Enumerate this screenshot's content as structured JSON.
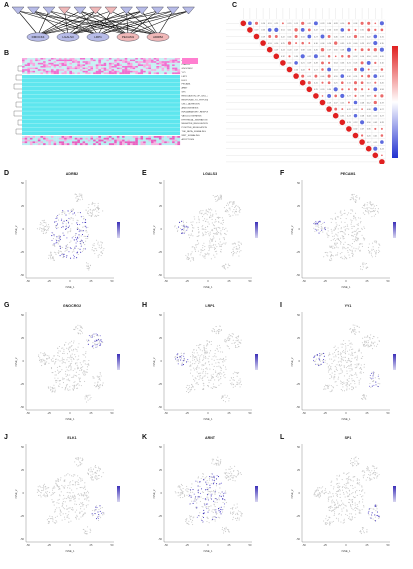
{
  "panels": {
    "A": {
      "letter": "A",
      "top_nodes": 12,
      "bottom_labels": [
        "DMOCK4",
        "LGALS3",
        "LRP1",
        "PECAM1",
        "ADRB2"
      ],
      "bottom_colors": [
        "#b8bce8",
        "#b8bce8",
        "#b8bce8",
        "#f0b8b8",
        "#f0b8b8"
      ]
    },
    "B": {
      "letter": "B",
      "row_labels": [
        "ADRB2",
        "LGALS3",
        "GNOCRG2",
        "YY1",
        "LRP1",
        "ELK1",
        "PECAM1",
        "ARNT",
        "SP1",
        "REGULATION_OF_CELL_MIGRATION",
        "RESPONSE_TO_HYPOXIA",
        "CELL_ADHESION",
        "ANGIOGENESIS",
        "INFLAMMATORY_RESPONSE",
        "VASCULOGENESIS",
        "EPITHELIAL_MIGRATION",
        "NEGATIVE_REGULATION",
        "POSITIVE_REGULATION",
        "TGF_BETA_SIGNALING",
        "WNT_SIGNALING",
        "APOPTOSIS"
      ]
    },
    "C": {
      "letter": "C"
    }
  },
  "tsne_panels": [
    {
      "letter": "D",
      "gene": "ADRB2"
    },
    {
      "letter": "E",
      "gene": "LGALS3"
    },
    {
      "letter": "F",
      "gene": "PECAM1"
    },
    {
      "letter": "G",
      "gene": "GNOCRG2"
    },
    {
      "letter": "H",
      "gene": "LRP1"
    },
    {
      "letter": "I",
      "gene": "YY1"
    },
    {
      "letter": "J",
      "gene": "ELK1"
    },
    {
      "letter": "K",
      "gene": "ARNT"
    },
    {
      "letter": "L",
      "gene": "SP1"
    }
  ],
  "axes": {
    "xlabel": "tSNE_1",
    "ylabel": "tSNE_2",
    "xticks": [
      "-50",
      "-25",
      "0",
      "25",
      "50"
    ],
    "yticks": [
      "-50",
      "-25",
      "0",
      "25",
      "50"
    ]
  },
  "colors": {
    "expr_high": "#3b2fb8",
    "expr_low": "#d8d6f0",
    "background_cell": "#c8c8c8",
    "heat_cyan": "#40e0e8",
    "heat_pink": "#f060c8",
    "corr_red": "#e03030",
    "corr_blue": "#3040d0"
  }
}
